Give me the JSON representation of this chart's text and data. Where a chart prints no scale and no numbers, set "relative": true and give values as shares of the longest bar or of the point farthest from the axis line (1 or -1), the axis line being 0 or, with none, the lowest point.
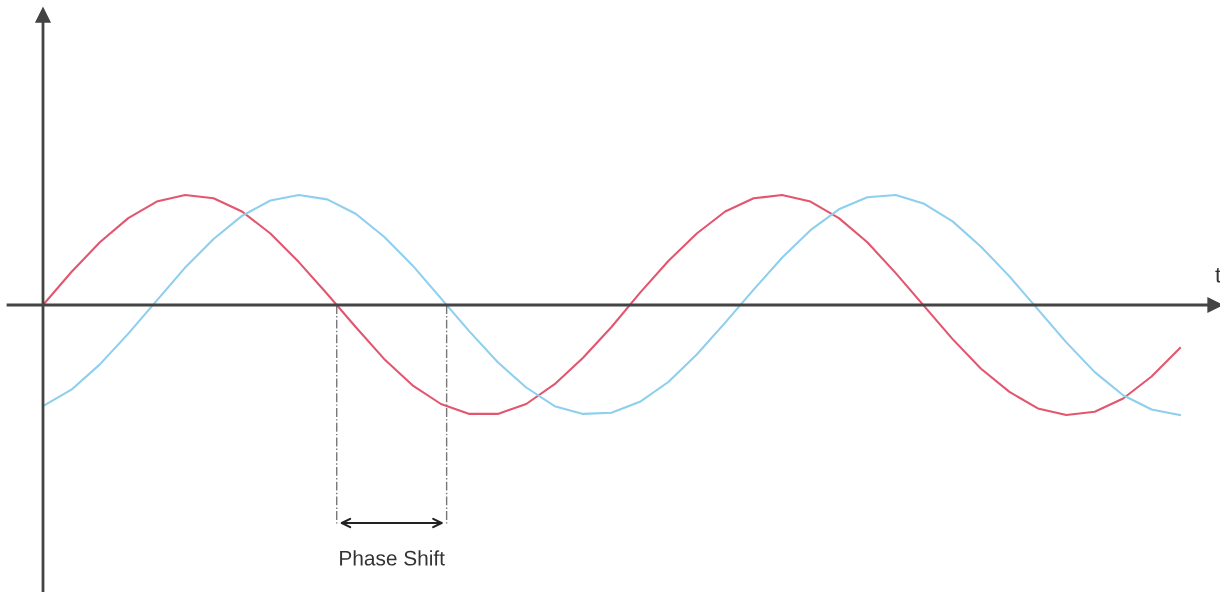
{
  "chart_data": {
    "type": "line",
    "relative": true,
    "xlabel": "t",
    "annotations": [
      "Phase Shift"
    ],
    "categories": [
      null,
      null,
      null,
      null,
      null,
      null,
      null,
      null,
      null,
      null,
      null,
      null,
      null,
      null,
      null,
      null,
      null,
      null,
      null,
      null,
      null,
      null,
      null,
      null,
      null,
      null,
      null,
      null,
      null,
      null,
      null,
      null,
      null,
      null,
      null,
      null,
      null,
      null,
      null,
      null,
      null
    ],
    "series": [
      {
        "color": "#e2566e",
        "values": [
          0,
          0.3,
          0.57,
          0.79,
          0.94,
          1.0,
          0.97,
          0.85,
          0.65,
          0.39,
          0.1,
          -0.2,
          -0.49,
          -0.73,
          -0.9,
          -0.99,
          -0.99,
          -0.9,
          -0.72,
          -0.48,
          -0.2,
          0.11,
          0.4,
          0.65,
          0.85,
          0.97,
          1.0,
          0.94,
          0.79,
          0.57,
          0.29,
          -0.01,
          -0.31,
          -0.58,
          -0.79,
          -0.94,
          -1.0,
          -0.97,
          -0.85,
          -0.65,
          -0.39
        ]
      },
      {
        "color": "#8ecfee",
        "values": [
          -0.92,
          -0.77,
          -0.54,
          -0.26,
          0.04,
          0.34,
          0.6,
          0.81,
          0.95,
          1.0,
          0.96,
          0.83,
          0.62,
          0.36,
          0.06,
          -0.24,
          -0.52,
          -0.75,
          -0.92,
          -0.99,
          -0.98,
          -0.88,
          -0.7,
          -0.45,
          -0.16,
          0.14,
          0.43,
          0.68,
          0.87,
          0.98,
          1.0,
          0.92,
          0.76,
          0.53,
          0.26,
          -0.04,
          -0.34,
          -0.61,
          -0.82,
          -0.95,
          -1.0
        ]
      }
    ]
  }
}
